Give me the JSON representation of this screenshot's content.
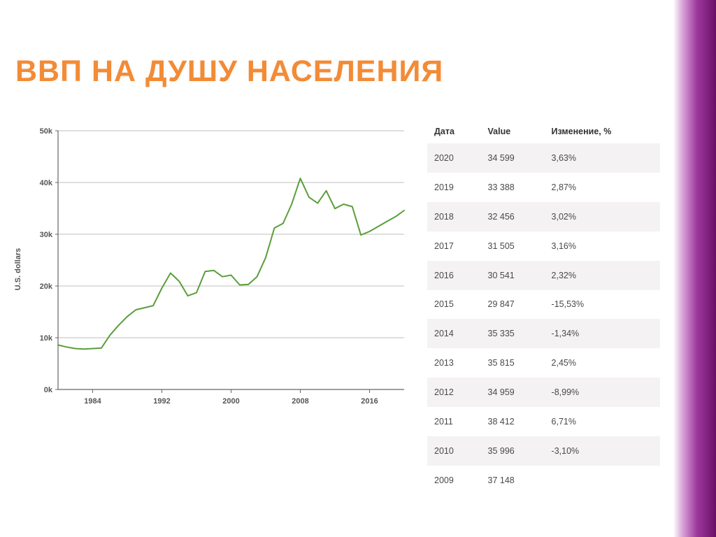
{
  "title": "ВВП НА ДУШУ НАСЕЛЕНИЯ",
  "chart": {
    "type": "line",
    "ylabel": "U.S. dollars",
    "ylim": [
      0,
      50000
    ],
    "yticks": [
      0,
      10000,
      20000,
      30000,
      40000,
      50000
    ],
    "ytick_labels": [
      "0k",
      "10k",
      "20k",
      "30k",
      "40k",
      "50k"
    ],
    "xlim": [
      1980,
      2020
    ],
    "xticks": [
      1984,
      1992,
      2000,
      2008,
      2016
    ],
    "line_color": "#5a9e3a",
    "line_width": 2,
    "grid_color": "#bfbfbf",
    "axis_color": "#666666",
    "background_color": "#ffffff",
    "tick_font_size": 11,
    "series": [
      {
        "x": 1980,
        "y": 8600
      },
      {
        "x": 1981,
        "y": 8200
      },
      {
        "x": 1982,
        "y": 7900
      },
      {
        "x": 1983,
        "y": 7800
      },
      {
        "x": 1984,
        "y": 7900
      },
      {
        "x": 1985,
        "y": 8000
      },
      {
        "x": 1986,
        "y": 10500
      },
      {
        "x": 1987,
        "y": 12400
      },
      {
        "x": 1988,
        "y": 14100
      },
      {
        "x": 1989,
        "y": 15400
      },
      {
        "x": 1990,
        "y": 15800
      },
      {
        "x": 1991,
        "y": 16200
      },
      {
        "x": 1992,
        "y": 19600
      },
      {
        "x": 1993,
        "y": 22500
      },
      {
        "x": 1994,
        "y": 20900
      },
      {
        "x": 1995,
        "y": 18100
      },
      {
        "x": 1996,
        "y": 18700
      },
      {
        "x": 1997,
        "y": 22800
      },
      {
        "x": 1998,
        "y": 23000
      },
      {
        "x": 1999,
        "y": 21800
      },
      {
        "x": 2000,
        "y": 22100
      },
      {
        "x": 2001,
        "y": 20200
      },
      {
        "x": 2002,
        "y": 20300
      },
      {
        "x": 2003,
        "y": 21800
      },
      {
        "x": 2004,
        "y": 25500
      },
      {
        "x": 2005,
        "y": 31200
      },
      {
        "x": 2006,
        "y": 32100
      },
      {
        "x": 2007,
        "y": 35800
      },
      {
        "x": 2008,
        "y": 40800
      },
      {
        "x": 2009,
        "y": 37148
      },
      {
        "x": 2010,
        "y": 35996
      },
      {
        "x": 2011,
        "y": 38412
      },
      {
        "x": 2012,
        "y": 34959
      },
      {
        "x": 2013,
        "y": 35815
      },
      {
        "x": 2014,
        "y": 35335
      },
      {
        "x": 2015,
        "y": 29847
      },
      {
        "x": 2016,
        "y": 30541
      },
      {
        "x": 2017,
        "y": 31505
      },
      {
        "x": 2018,
        "y": 32456
      },
      {
        "x": 2019,
        "y": 33388
      },
      {
        "x": 2020,
        "y": 34599
      }
    ]
  },
  "table": {
    "columns": [
      "Дата",
      "Value",
      "Изменение, %"
    ],
    "rows": [
      [
        "2020",
        "34 599",
        "3,63%"
      ],
      [
        "2019",
        "33 388",
        "2,87%"
      ],
      [
        "2018",
        "32 456",
        "3,02%"
      ],
      [
        "2017",
        "31 505",
        "3,16%"
      ],
      [
        "2016",
        "30 541",
        "2,32%"
      ],
      [
        "2015",
        "29 847",
        "-15,53%"
      ],
      [
        "2014",
        "35 335",
        "-1,34%"
      ],
      [
        "2013",
        "35 815",
        "2,45%"
      ],
      [
        "2012",
        "34 959",
        "-8,99%"
      ],
      [
        "2011",
        "38 412",
        "6,71%"
      ],
      [
        "2010",
        "35 996",
        "-3,10%"
      ],
      [
        "2009",
        "37 148",
        ""
      ]
    ]
  },
  "decor": {
    "purple_gradient_from": "#b45ab4",
    "purple_gradient_to": "#6a1066"
  }
}
